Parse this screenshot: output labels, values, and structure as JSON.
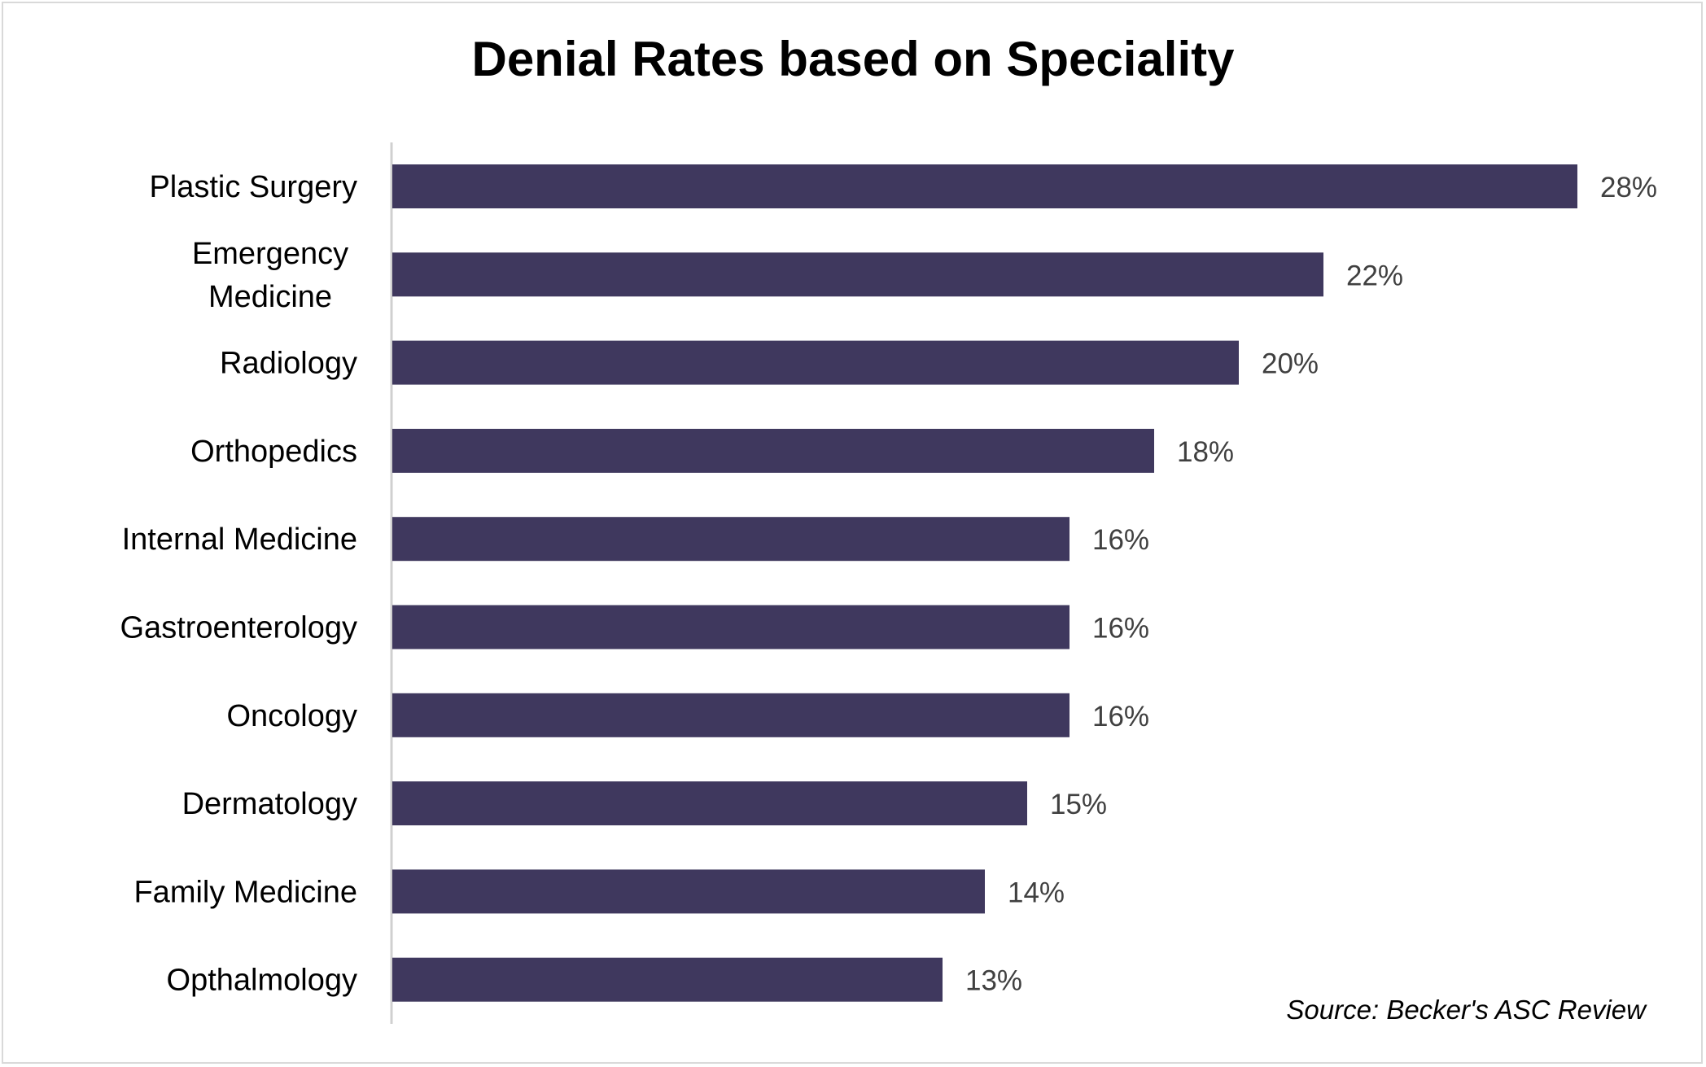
{
  "chart_data": {
    "type": "bar",
    "orientation": "horizontal",
    "title": "Denial Rates based on Speciality",
    "categories": [
      [
        "Plastic Surgery"
      ],
      [
        "Emergency",
        "Medicine"
      ],
      [
        "Radiology"
      ],
      [
        "Orthopedics"
      ],
      [
        "Internal Medicine"
      ],
      [
        "Gastroenterology"
      ],
      [
        "Oncology"
      ],
      [
        "Dermatology"
      ],
      [
        "Family Medicine"
      ],
      [
        "Opthalmology"
      ]
    ],
    "values": [
      28,
      22,
      20,
      18,
      16,
      16,
      16,
      15,
      14,
      13
    ],
    "data_labels": [
      "28%",
      "22%",
      "20%",
      "18%",
      "16%",
      "16%",
      "16%",
      "15%",
      "14%",
      "13%"
    ],
    "value_unit": "%",
    "xlim": [
      0,
      28
    ],
    "grid": false,
    "legend": "none",
    "bar_color": "#3f385e",
    "source": "Source: Becker's ASC Review"
  }
}
